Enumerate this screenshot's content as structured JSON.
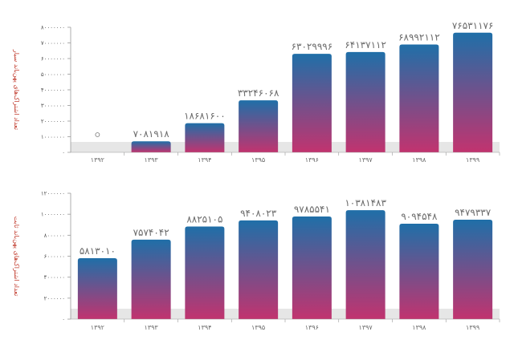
{
  "colors": {
    "bar_top": "#1f6fa8",
    "bar_bottom": "#c2336f",
    "band": "#e6e6e6",
    "axis": "#999999",
    "ylabel": "#c0392b"
  },
  "chart_data": [
    {
      "type": "bar",
      "ylabel": "تعداد اشتراک‌های پهن‌باند سیار",
      "categories": [
        "۱۳۹۲",
        "۱۳۹۳",
        "۱۳۹۴",
        "۱۳۹۵",
        "۱۳۹۶",
        "۱۳۹۷",
        "۱۳۹۸",
        "۱۳۹۹"
      ],
      "values": [
        0,
        7081918,
        18681600,
        33246068,
        63029996,
        64137112,
        68992112,
        76531176
      ],
      "value_labels": [
        "۰",
        "۷۰۸۱۹۱۸",
        "۱۸۶۸۱۶۰۰",
        "۳۳۲۴۶۰۶۸",
        "۶۳۰۲۹۹۹۶",
        "۶۴۱۳۷۱۱۲",
        "۶۸۹۹۲۱۱۲",
        "۷۶۵۳۱۱۷۶"
      ],
      "ylim": [
        0,
        80000000
      ],
      "yticks": [
        0,
        10000000,
        20000000,
        30000000,
        40000000,
        50000000,
        60000000,
        70000000,
        80000000
      ],
      "ytick_labels": [
        "۰",
        "۱۰۰۰۰۰۰۰",
        "۲۰۰۰۰۰۰۰",
        "۳۰۰۰۰۰۰۰",
        "۴۰۰۰۰۰۰۰",
        "۵۰۰۰۰۰۰۰",
        "۶۰۰۰۰۰۰۰",
        "۷۰۰۰۰۰۰۰",
        "۸۰۰۰۰۰۰۰"
      ],
      "grid": false,
      "legend": "none"
    },
    {
      "type": "bar",
      "ylabel": "تعداد اشتراک‌های پهن‌باند ثابت",
      "categories": [
        "۱۳۹۲",
        "۱۳۹۳",
        "۱۳۹۴",
        "۱۳۹۵",
        "۱۳۹۶",
        "۱۳۹۷",
        "۱۳۹۸",
        "۱۳۹۹"
      ],
      "values": [
        5813010,
        7574042,
        8825105,
        9408023,
        9785541,
        10381483,
        9094548,
        9479337
      ],
      "value_labels": [
        "۵۸۱۳۰۱۰",
        "۷۵۷۴۰۴۲",
        "۸۸۲۵۱۰۵",
        "۹۴۰۸۰۲۳",
        "۹۷۸۵۵۴۱",
        "۱۰۳۸۱۴۸۳",
        "۹۰۹۴۵۴۸",
        "۹۴۷۹۳۳۷"
      ],
      "ylim": [
        0,
        12000000
      ],
      "yticks": [
        0,
        2000000,
        4000000,
        6000000,
        8000000,
        10000000,
        12000000
      ],
      "ytick_labels": [
        "۰",
        "۲۰۰۰۰۰۰",
        "۴۰۰۰۰۰۰",
        "۶۰۰۰۰۰۰",
        "۸۰۰۰۰۰۰",
        "۱۰۰۰۰۰۰۰",
        "۱۲۰۰۰۰۰۰"
      ],
      "grid": false,
      "legend": "none"
    }
  ]
}
